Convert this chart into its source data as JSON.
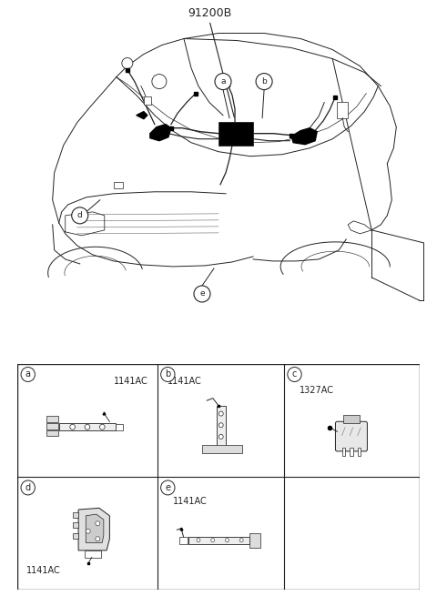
{
  "background_color": "#ffffff",
  "main_label": "91200B",
  "part_numbers": {
    "a": "1141AC",
    "b": "1141AC",
    "c": "1327AC",
    "d": "1141AC",
    "e": "1141AC"
  },
  "line_color": "#222222",
  "lw_main": 0.7,
  "fig_width": 4.8,
  "fig_height": 6.55,
  "dpi": 100
}
